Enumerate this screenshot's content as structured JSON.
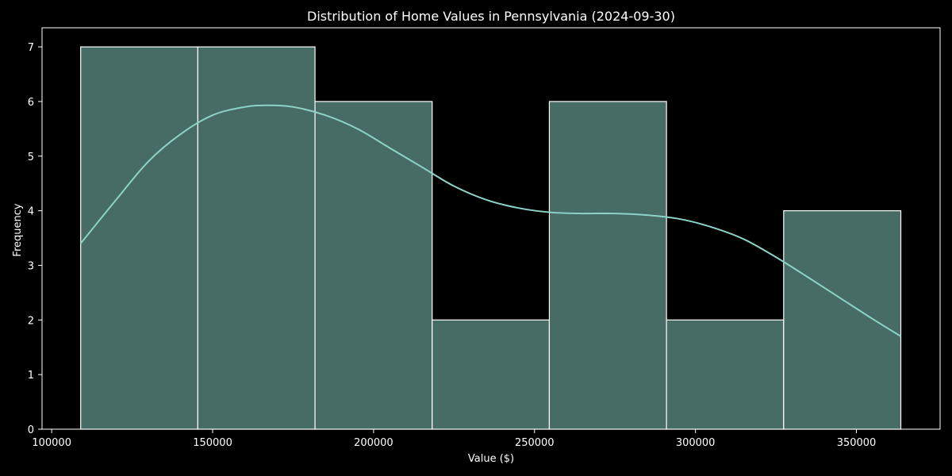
{
  "chart_data": {
    "type": "bar",
    "title": "Distribution of Home Values in Pennsylvania (2024-09-30)",
    "xlabel": "Value ($)",
    "ylabel": "Frequency",
    "bins": [
      {
        "start": 109000,
        "end": 145400,
        "count": 7
      },
      {
        "start": 145400,
        "end": 181800,
        "count": 7
      },
      {
        "start": 181800,
        "end": 218200,
        "count": 6
      },
      {
        "start": 218200,
        "end": 254600,
        "count": 2
      },
      {
        "start": 254600,
        "end": 291000,
        "count": 6
      },
      {
        "start": 291000,
        "end": 327400,
        "count": 2
      },
      {
        "start": 327400,
        "end": 363800,
        "count": 4
      }
    ],
    "kde_curve": {
      "x": [
        109000,
        120000,
        130000,
        140000,
        150000,
        160000,
        167000,
        175000,
        185000,
        195000,
        205000,
        215000,
        225000,
        235000,
        245000,
        255000,
        265000,
        275000,
        285000,
        295000,
        305000,
        315000,
        325000,
        335000,
        345000,
        355000,
        363800
      ],
      "y": [
        3.4,
        4.2,
        4.9,
        5.4,
        5.75,
        5.9,
        5.93,
        5.9,
        5.75,
        5.5,
        5.15,
        4.8,
        4.45,
        4.2,
        4.05,
        3.97,
        3.95,
        3.95,
        3.92,
        3.85,
        3.7,
        3.48,
        3.15,
        2.78,
        2.4,
        2.02,
        1.7
      ]
    },
    "xlim": [
      97000,
      376000
    ],
    "ylim": [
      0,
      7.35
    ],
    "xticks": [
      100000,
      150000,
      200000,
      250000,
      300000,
      350000
    ],
    "yticks": [
      0,
      1,
      2,
      3,
      4,
      5,
      6,
      7
    ],
    "grid": false,
    "legend": "none",
    "colors": {
      "background": "#000000",
      "bar_fill": "#476b65",
      "bar_edge": "#ffffff",
      "kde_line": "#8dd3c7",
      "axis": "#ffffff",
      "text": "#ffffff"
    }
  }
}
